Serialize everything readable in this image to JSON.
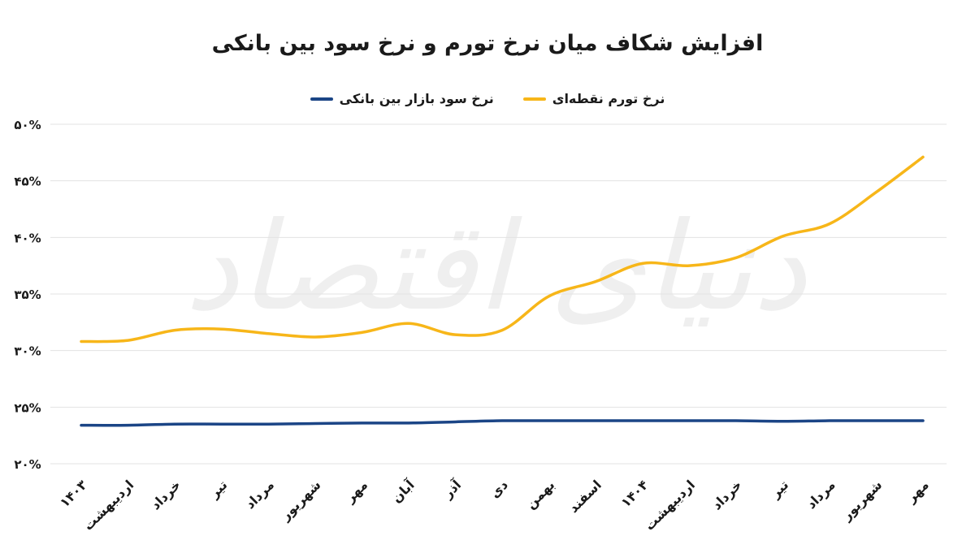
{
  "chart_data": {
    "type": "line",
    "title": "افزایش شکاف میان نرخ تورم و نرخ سود بین بانکی",
    "xlabel": "",
    "ylabel": "",
    "ylim": [
      20,
      50
    ],
    "yticks": [
      20,
      25,
      30,
      35,
      40,
      45,
      50
    ],
    "ytick_labels": [
      "۲۰%",
      "۲۵%",
      "۳۰%",
      "۳۵%",
      "۴۰%",
      "۴۵%",
      "۵۰%"
    ],
    "categories": [
      "۱۴۰۳",
      "اردیبهشت",
      "خرداد",
      "تیر",
      "مرداد",
      "شهریور",
      "مهر",
      "آبان",
      "آذر",
      "دی",
      "بهمن",
      "اسفند",
      "۱۴۰۴",
      "اردیبهشت",
      "خرداد",
      "تیر",
      "مرداد",
      "شهریور",
      "مهر"
    ],
    "series": [
      {
        "name": "نرخ تورم نقطه‌ای",
        "color": "#F7B619",
        "values": [
          30.8,
          30.9,
          31.8,
          31.9,
          31.5,
          31.2,
          31.6,
          32.4,
          31.4,
          31.8,
          34.8,
          36.1,
          37.7,
          37.5,
          38.2,
          40.1,
          41.2,
          44.0,
          47.1
        ]
      },
      {
        "name": "نرخ سود بازار بین بانکی",
        "color": "#1B4586",
        "values": [
          23.4,
          23.4,
          23.5,
          23.5,
          23.5,
          23.55,
          23.6,
          23.6,
          23.7,
          23.8,
          23.8,
          23.8,
          23.8,
          23.8,
          23.8,
          23.75,
          23.8,
          23.8,
          23.8
        ]
      }
    ],
    "grid": true,
    "legend_position": "top-center"
  },
  "watermark": {
    "text": "دنیای اقتصاد"
  }
}
